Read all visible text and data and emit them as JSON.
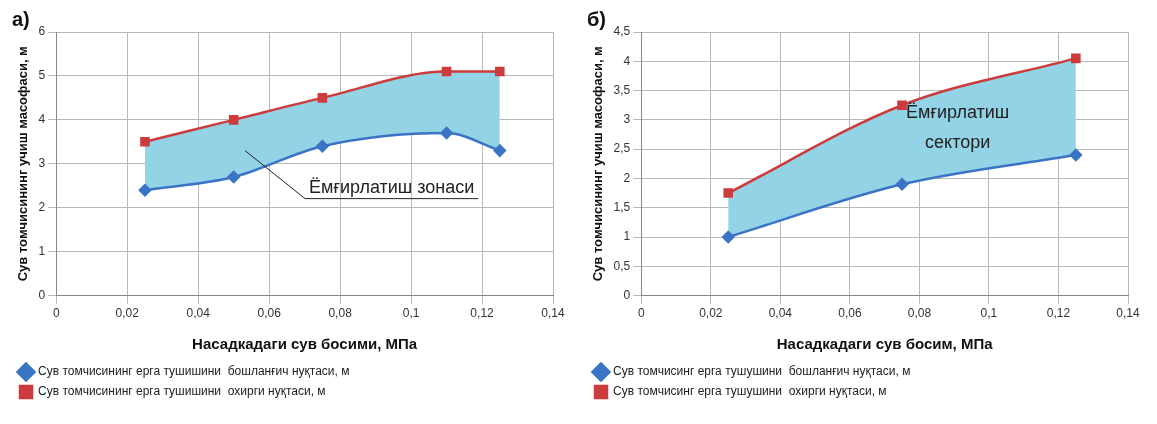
{
  "chart_data": [
    {
      "type": "line",
      "title": "а)",
      "xlabel": "Насадкадаги сув босими, МПа",
      "ylabel": "Сув томчисининг учиш масофаси, м",
      "x": [
        0.025,
        0.05,
        0.075,
        0.11,
        0.125
      ],
      "series": [
        {
          "name": "Сув томчисининг ерга тушишини  бошланғич нуқтаси, м",
          "color": "#3b74c4",
          "marker": "diamond",
          "values": [
            2.4,
            2.7,
            3.4,
            3.7,
            3.3
          ]
        },
        {
          "name": "Сув томчисининг ерга тушишини  охирги нуқтаси, м",
          "color": "#cc3c3c",
          "marker": "square",
          "values": [
            3.5,
            4.0,
            4.5,
            5.1,
            5.1
          ],
          "lower": [
            2.4,
            2.7,
            3.4,
            3.7,
            3.3
          ],
          "upper": [
            3.5,
            4.0,
            4.5,
            5.1,
            5.1
          ]
        }
      ],
      "xlim": [
        0,
        0.14
      ],
      "xticks": [
        0,
        {
          "value": 0.02,
          "label": "0,02"
        },
        {
          "value": 0.04,
          "label": "0,04"
        },
        {
          "value": 0.06,
          "label": "0,06"
        },
        {
          "value": 0.08,
          "label": "0,08"
        },
        {
          "value": 0.1,
          "label": "0,1"
        },
        {
          "value": 0.12,
          "label": "0,12"
        },
        {
          "value": 0.14,
          "label": "0,14"
        }
      ],
      "ylim": [
        0,
        6
      ],
      "yticks": [
        0,
        1,
        2,
        3,
        4,
        5,
        6
      ],
      "grid": true,
      "legend": "bottom",
      "line_style": "solid",
      "annotations": [
        "Ёмғирлатиш зонаси"
      ]
    },
    {
      "type": "line",
      "title": "б)",
      "xlabel": "Насадкадаги сув босим, МПа",
      "ylabel": "Сув томчисининг учиш масофаси, м",
      "x": [
        0.025,
        0.075,
        0.125
      ],
      "series": [
        {
          "name": "Сув томчисинг ерга тушушини  бошланғич нуқтаси, м",
          "color": "#3b74c4",
          "marker": "diamond",
          "values": [
            1.0,
            1.9,
            2.4
          ]
        },
        {
          "name": "Сув томчисинг ерга тушушини  охирги нуқтаси, м",
          "color": "#cc3c3c",
          "marker": "square",
          "values": [
            1.75,
            3.25,
            4.05
          ],
          "lower": [
            1.0,
            1.9,
            2.4
          ],
          "upper": [
            1.75,
            3.25,
            4.05
          ]
        }
      ],
      "xlim": [
        0,
        0.14
      ],
      "xticks": [
        0,
        {
          "value": 0.02,
          "label": "0,02"
        },
        {
          "value": 0.04,
          "label": "0,04"
        },
        {
          "value": 0.06,
          "label": "0,06"
        },
        {
          "value": 0.08,
          "label": "0,08"
        },
        {
          "value": 0.1,
          "label": "0,1"
        },
        {
          "value": 0.12,
          "label": "0,12"
        },
        {
          "value": 0.14,
          "label": "0,14"
        }
      ],
      "ylim": [
        0,
        4.5
      ],
      "yticks": [
        0,
        {
          "value": 0.5,
          "label": "0,5"
        },
        1,
        {
          "value": 1.5,
          "label": "1,5"
        },
        2,
        {
          "value": 2.5,
          "label": "2,5"
        },
        3,
        {
          "value": 3.5,
          "label": "3,5"
        },
        4,
        {
          "value": 4.5,
          "label": "4,5"
        }
      ],
      "grid": true,
      "legend": "bottom",
      "line_style": "solid",
      "annotations": [
        "Ёмғирлатиш сектори"
      ]
    }
  ]
}
